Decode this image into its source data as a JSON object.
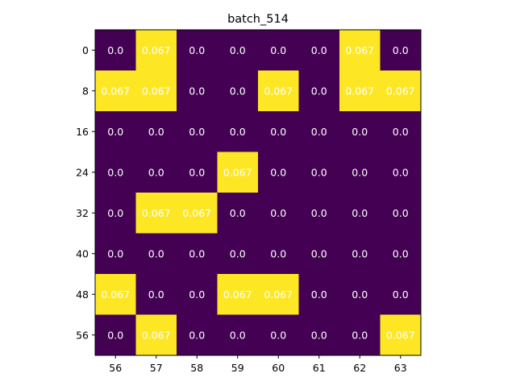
{
  "chart_data": {
    "type": "heatmap",
    "title": "batch_514",
    "xlabel": "",
    "ylabel": "",
    "x_tick_labels": [
      "56",
      "57",
      "58",
      "59",
      "60",
      "61",
      "62",
      "63"
    ],
    "y_tick_labels": [
      "0",
      "8",
      "16",
      "24",
      "32",
      "40",
      "48",
      "56"
    ],
    "cell_labels": [
      [
        "0.0",
        "0.067",
        "0.0",
        "0.0",
        "0.0",
        "0.0",
        "0.067",
        "0.0"
      ],
      [
        "0.067",
        "0.067",
        "0.0",
        "0.0",
        "0.067",
        "0.0",
        "0.067",
        "0.067"
      ],
      [
        "0.0",
        "0.0",
        "0.0",
        "0.0",
        "0.0",
        "0.0",
        "0.0",
        "0.0"
      ],
      [
        "0.0",
        "0.0",
        "0.0",
        "0.067",
        "0.0",
        "0.0",
        "0.0",
        "0.0"
      ],
      [
        "0.0",
        "0.067",
        "0.067",
        "0.0",
        "0.0",
        "0.0",
        "0.0",
        "0.0"
      ],
      [
        "0.0",
        "0.0",
        "0.0",
        "0.0",
        "0.0",
        "0.0",
        "0.0",
        "0.0"
      ],
      [
        "0.067",
        "0.0",
        "0.0",
        "0.067",
        "0.067",
        "0.0",
        "0.0",
        "0.0"
      ],
      [
        "0.0",
        "0.067",
        "0.0",
        "0.0",
        "0.0",
        "0.0",
        "0.0",
        "0.067"
      ]
    ],
    "values": [
      [
        0.0,
        0.067,
        0.0,
        0.0,
        0.0,
        0.0,
        0.067,
        0.0
      ],
      [
        0.067,
        0.067,
        0.0,
        0.0,
        0.067,
        0.0,
        0.067,
        0.067
      ],
      [
        0.0,
        0.0,
        0.0,
        0.0,
        0.0,
        0.0,
        0.0,
        0.0
      ],
      [
        0.0,
        0.0,
        0.0,
        0.067,
        0.0,
        0.0,
        0.0,
        0.0
      ],
      [
        0.0,
        0.067,
        0.067,
        0.0,
        0.0,
        0.0,
        0.0,
        0.0
      ],
      [
        0.0,
        0.0,
        0.0,
        0.0,
        0.0,
        0.0,
        0.0,
        0.0
      ],
      [
        0.067,
        0.0,
        0.0,
        0.067,
        0.067,
        0.0,
        0.0,
        0.0
      ],
      [
        0.0,
        0.067,
        0.0,
        0.0,
        0.0,
        0.0,
        0.0,
        0.067
      ]
    ],
    "value_range": [
      0.0,
      0.067
    ],
    "colormap": {
      "low": "#440154",
      "high": "#fde725"
    },
    "cell_text_color": "#ffffff",
    "grid": false,
    "legend": "none"
  }
}
